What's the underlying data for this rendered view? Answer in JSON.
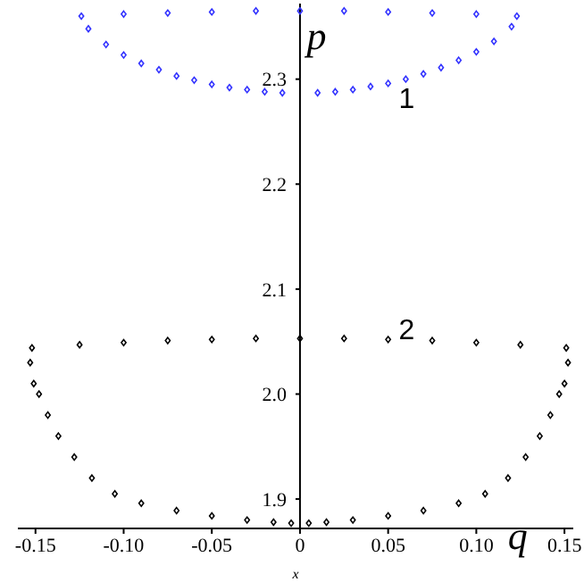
{
  "chart_data": {
    "type": "scatter",
    "xlabel": "q",
    "ylabel": "p",
    "marker": "diamond",
    "xlim": [
      -0.16,
      0.155
    ],
    "ylim": [
      1.872,
      2.372
    ],
    "xticks": [
      -0.15,
      {
        "value": -0.1,
        "label": "-0.10"
      },
      -0.05,
      0,
      0.05,
      {
        "value": 0.1,
        "label": "0.10"
      },
      0.15
    ],
    "yticks": [
      1.9,
      {
        "value": 2,
        "label": "2.0"
      },
      2.1,
      2.2,
      2.3
    ],
    "annotations": [
      "1",
      "2",
      "x"
    ],
    "series": [
      {
        "color": "#3333ff",
        "x": [
          -0.124,
          -0.1,
          -0.075,
          -0.05,
          -0.025,
          0,
          0.025,
          0.05,
          0.075,
          0.1,
          0.123,
          0.12,
          0.11,
          0.1,
          0.09,
          0.08,
          0.07,
          0.06,
          0.05,
          0.04,
          0.03,
          0.02,
          0.01,
          -0.01,
          -0.02,
          -0.03,
          -0.04,
          -0.05,
          -0.06,
          -0.07,
          -0.08,
          -0.09,
          -0.1,
          -0.11,
          -0.12
        ],
        "values": [
          2.36,
          2.362,
          2.363,
          2.364,
          2.365,
          2.365,
          2.365,
          2.364,
          2.363,
          2.362,
          2.36,
          2.35,
          2.336,
          2.326,
          2.318,
          2.311,
          2.305,
          2.3,
          2.296,
          2.293,
          2.29,
          2.288,
          2.287,
          2.287,
          2.288,
          2.29,
          2.292,
          2.295,
          2.299,
          2.303,
          2.309,
          2.315,
          2.323,
          2.333,
          2.348
        ]
      },
      {
        "color": "#000000",
        "x": [
          -0.152,
          -0.125,
          -0.1,
          -0.075,
          -0.05,
          -0.025,
          0,
          0.025,
          0.05,
          0.075,
          0.1,
          0.125,
          0.151,
          0.152,
          0.15,
          0.147,
          0.142,
          0.136,
          0.128,
          0.118,
          0.105,
          0.09,
          0.07,
          0.05,
          0.03,
          0.015,
          0.005,
          -0.005,
          -0.015,
          -0.03,
          -0.05,
          -0.07,
          -0.09,
          -0.105,
          -0.118,
          -0.128,
          -0.137,
          -0.143,
          -0.148,
          -0.151,
          -0.153
        ],
        "values": [
          2.044,
          2.047,
          2.049,
          2.051,
          2.052,
          2.053,
          2.053,
          2.053,
          2.052,
          2.051,
          2.049,
          2.047,
          2.044,
          2.03,
          2.01,
          2.0,
          1.98,
          1.96,
          1.94,
          1.92,
          1.905,
          1.896,
          1.889,
          1.884,
          1.88,
          1.878,
          1.877,
          1.877,
          1.878,
          1.88,
          1.884,
          1.889,
          1.896,
          1.905,
          1.92,
          1.94,
          1.96,
          1.98,
          2.0,
          2.01,
          2.03
        ]
      }
    ]
  }
}
